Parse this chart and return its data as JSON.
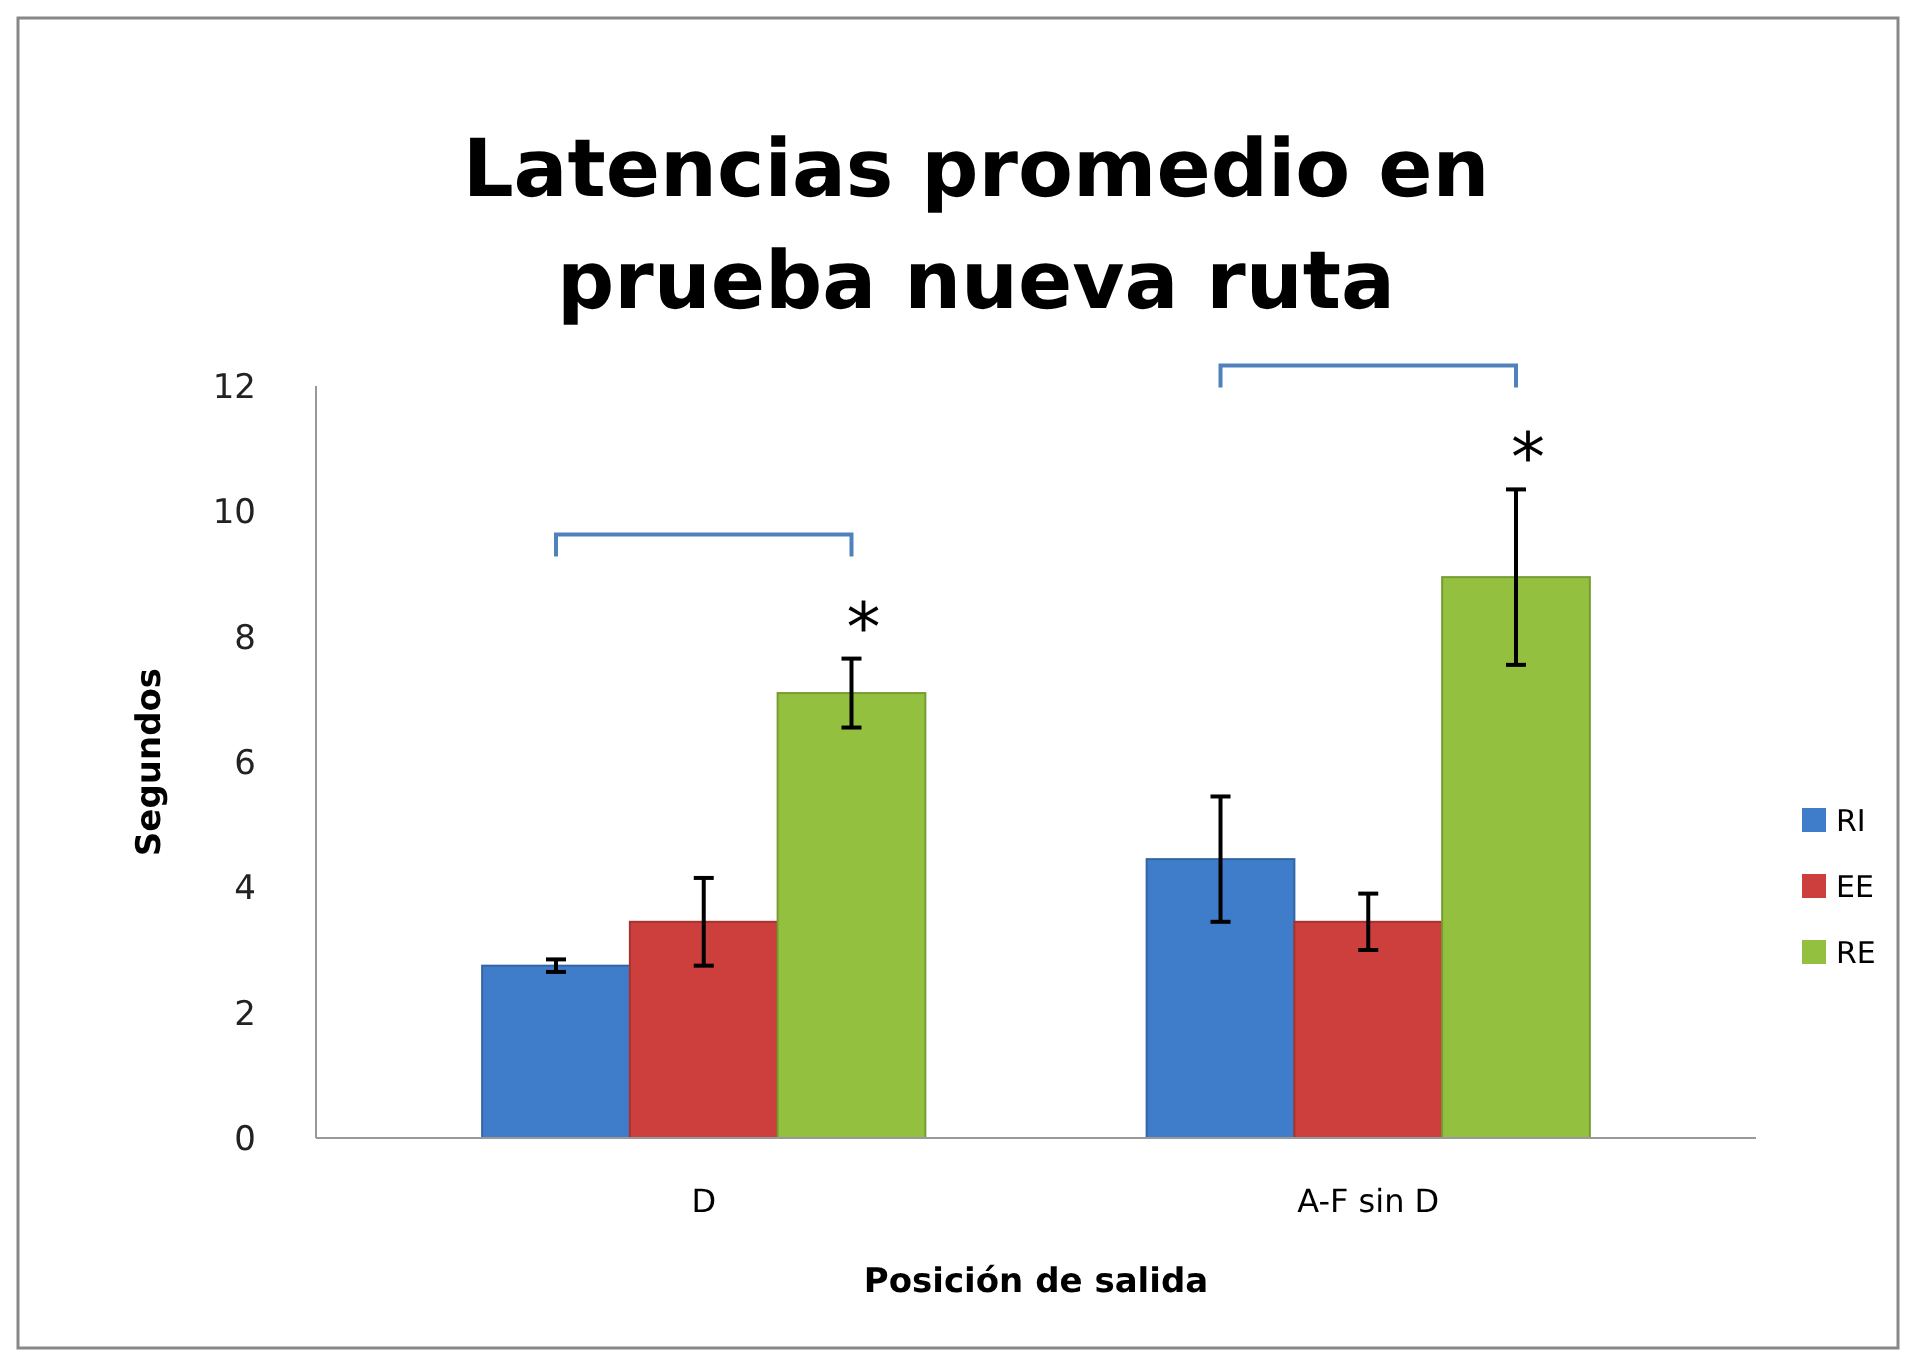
{
  "chart_data": {
    "type": "bar",
    "title": "Latencias promedio en prueba nueva ruta",
    "xlabel": "Posición de salida",
    "ylabel": "Segundos",
    "categories": [
      "D",
      "A-F sin D"
    ],
    "series": [
      {
        "name": "RI",
        "color": "#3f7dcb",
        "values": [
          2.75,
          4.45
        ],
        "errors": [
          0.1,
          1.0
        ]
      },
      {
        "name": "EE",
        "color": "#cc3f3c",
        "values": [
          3.45,
          3.45
        ],
        "errors": [
          0.7,
          0.45
        ]
      },
      {
        "name": "RE",
        "color": "#93c13f",
        "values": [
          7.1,
          8.95
        ],
        "errors": [
          0.55,
          1.4
        ]
      }
    ],
    "ylim": [
      0,
      12
    ],
    "yticks": [
      0,
      2,
      4,
      6,
      8,
      10,
      12
    ],
    "grid": false,
    "legend": "right",
    "annotations": [
      "*",
      "*"
    ]
  }
}
